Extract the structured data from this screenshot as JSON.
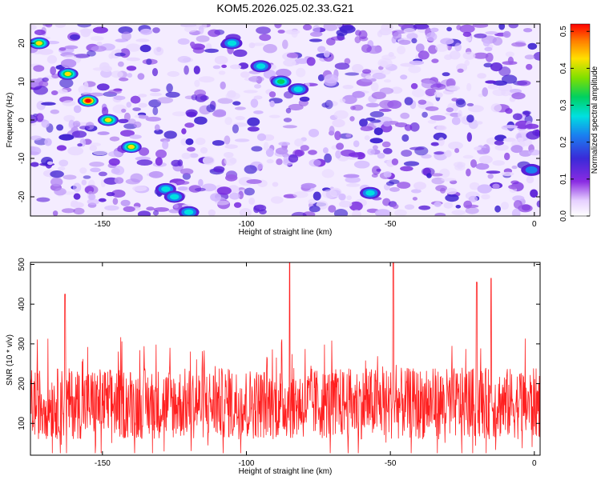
{
  "title": "KOM5.2026.025.02.33.G21",
  "colors": {
    "signal_line": "#ff2020",
    "axis": "#000000",
    "background": "#ffffff"
  },
  "chart_data": [
    {
      "type": "heatmap",
      "xlabel": "Height of straight line (km)",
      "ylabel": "Frequency (Hz)",
      "xlim": [
        -175,
        2
      ],
      "ylim": [
        -25,
        25
      ],
      "x_ticks": [
        "-150",
        "-100",
        "-50",
        "0"
      ],
      "y_ticks": [
        "20",
        "10",
        "0",
        "-10",
        "-20"
      ],
      "colorbar": {
        "label": "Normalized spectral amplitude",
        "range": [
          0,
          0.52
        ],
        "ticks": [
          "0.5",
          "0.4",
          "0.3",
          "0.2",
          "0.1",
          "0.0"
        ],
        "colormap": "white-purple-blue-cyan-green-yellow-red"
      },
      "ridges": [
        {
          "x": [
            -172,
            -162,
            -155,
            -148,
            -140
          ],
          "y": [
            20,
            12,
            5,
            0,
            -7
          ],
          "peak_amplitude": 0.5
        },
        {
          "x": [
            -128,
            -125,
            -120
          ],
          "y": [
            -18,
            -20,
            -24
          ],
          "peak_amplitude": 0.25
        },
        {
          "x": [
            -105,
            -95,
            -88,
            -82
          ],
          "y": [
            20,
            14,
            10,
            8
          ],
          "peak_amplitude": 0.3
        },
        {
          "x": [
            -57
          ],
          "y": [
            -19
          ],
          "peak_amplitude": 0.2
        },
        {
          "x": [
            -1
          ],
          "y": [
            -13
          ],
          "peak_amplitude": 0.15
        }
      ]
    },
    {
      "type": "line",
      "xlabel": "Height of straight line (km)",
      "ylabel": "SNR (10 * v/v)",
      "xlim": [
        -175,
        2
      ],
      "ylim": [
        20,
        505
      ],
      "x_ticks": [
        "-150",
        "-100",
        "-50",
        "0"
      ],
      "y_ticks": [
        "500",
        "400",
        "300",
        "200",
        "100"
      ],
      "series": [
        {
          "color": "#ff2020",
          "baseline": 150,
          "typical_range": [
            40,
            330
          ],
          "peaks": [
            {
              "x": -85,
              "y": 505
            },
            {
              "x": -49,
              "y": 505
            },
            {
              "x": -20,
              "y": 455
            },
            {
              "x": -15,
              "y": 465
            },
            {
              "x": -163,
              "y": 425
            }
          ]
        }
      ]
    }
  ]
}
